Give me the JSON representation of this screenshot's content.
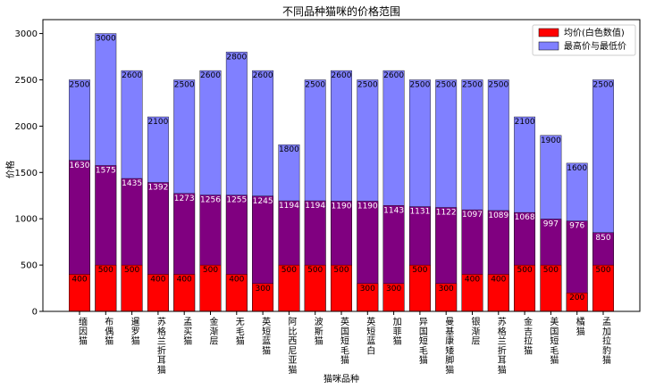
{
  "chart_data": {
    "type": "bar",
    "title": "不同品种猫咪的价格范围",
    "xlabel": "猫咪品种",
    "ylabel": "价格",
    "ylim": [
      0,
      3150
    ],
    "yticks": [
      0,
      500,
      1000,
      1500,
      2000,
      2500,
      3000
    ],
    "grid": false,
    "legend_position": "top-right",
    "categories": [
      "缅因猫",
      "布偶猫",
      "暹罗猫",
      "苏格兰折耳猫",
      "孟买猫",
      "金渐层",
      "无毛猫",
      "英短蓝猫",
      "阿比西尼亚猫",
      "波斯猫",
      "英国短毛猫",
      "英短蓝白",
      "加菲猫",
      "异国短毛猫",
      "曼基康矮脚猫",
      "银渐层",
      "苏格兰折耳猫",
      "金吉拉猫",
      "美国短毛猫",
      "橘猫",
      "孟加拉豹猫"
    ],
    "series": [
      {
        "name": "最高价与最低价",
        "role": "max",
        "color": "#8080ff",
        "values": [
          2500,
          3000,
          2600,
          2100,
          2500,
          2600,
          2800,
          2600,
          1800,
          2500,
          2600,
          2500,
          2600,
          2500,
          2500,
          2500,
          2500,
          2100,
          1900,
          1600,
          2500
        ]
      },
      {
        "name": "",
        "role": "avg",
        "color": "#800080",
        "values": [
          1630,
          1575,
          1435,
          1392,
          1273,
          1256,
          1255,
          1245,
          1194,
          1194,
          1190,
          1190,
          1143,
          1131,
          1122,
          1097,
          1089,
          1068,
          997,
          976,
          850
        ]
      },
      {
        "name": "均价(白色数值)",
        "role": "min",
        "color": "#ff0000",
        "values": [
          400,
          500,
          500,
          400,
          400,
          500,
          400,
          300,
          500,
          500,
          500,
          300,
          300,
          500,
          300,
          400,
          400,
          500,
          500,
          200,
          500
        ]
      }
    ],
    "legend": [
      {
        "label": "均价(白色数值)",
        "color": "#ff0000"
      },
      {
        "label": "最高价与最低价",
        "color": "#8080ff"
      }
    ]
  }
}
